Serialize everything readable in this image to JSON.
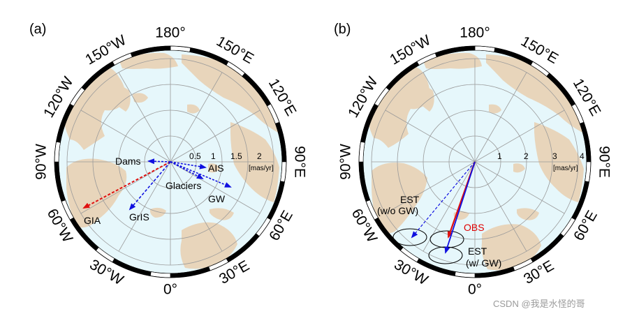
{
  "panels": [
    {
      "label": "(a)",
      "lon_labels": [
        "180°",
        "150°E",
        "120°E",
        "90°E",
        "60°E",
        "30°E",
        "0°",
        "30°W",
        "60°W",
        "90°W",
        "120°W",
        "150°W"
      ],
      "rings": [
        "0.5",
        "1",
        "1.5",
        "2"
      ],
      "unit": "[mas/yr]",
      "vectors": [
        {
          "label": "GIA",
          "color": "#e01010",
          "dashed": true
        },
        {
          "label": "GrIS",
          "color": "#1010e0",
          "dashed": true
        },
        {
          "label": "Dams",
          "color": "#1010e0",
          "dashed": true
        },
        {
          "label": "AIS",
          "color": "#1010e0",
          "dashed": true
        },
        {
          "label": "Glaciers",
          "color": "#1010e0",
          "dashed": true
        },
        {
          "label": "GW",
          "color": "#1010e0",
          "dashed": true
        }
      ]
    },
    {
      "label": "(b)",
      "lon_labels": [
        "180°",
        "150°E",
        "120°E",
        "90°E",
        "60°E",
        "30°E",
        "0°",
        "30°W",
        "60°W",
        "90°W",
        "120°W",
        "150°W"
      ],
      "rings": [
        "1",
        "2",
        "3",
        "4"
      ],
      "unit": "[mas/yr]",
      "vectors": [
        {
          "label": "EST",
          "sublabel": "(w/o GW)",
          "color": "#1010e0",
          "dashed": true
        },
        {
          "label": "OBS",
          "color": "#e01010",
          "dashed": false
        },
        {
          "label": "EST",
          "sublabel": "(w/ GW)",
          "color": "#1010e0",
          "dashed": false
        }
      ]
    }
  ],
  "colors": {
    "ocean": "#e6f7fb",
    "land": "#e8d5bb",
    "grid": "#9a9a9a"
  },
  "watermark": "CSDN @我是水怪的哥"
}
